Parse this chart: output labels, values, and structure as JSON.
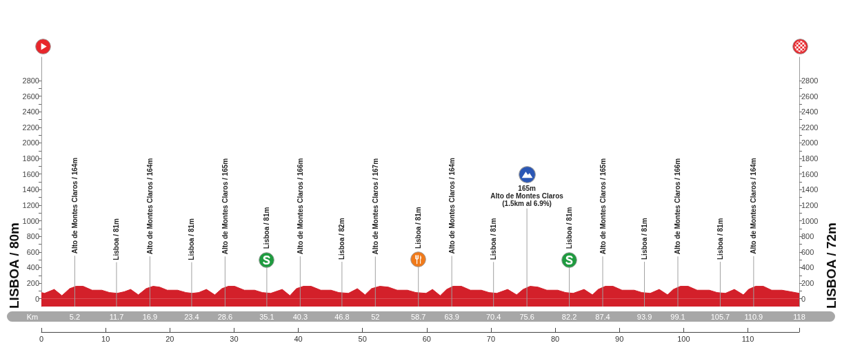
{
  "chart_data": {
    "type": "area",
    "x2label": "Km",
    "ylabel": "LISBOA / 80m",
    "y2label": "LISBOA / 72m",
    "color": "#d3202a",
    "x": [
      0,
      0.5,
      2,
      3.2,
      4.4,
      5.4,
      6.5,
      7.9,
      9.4,
      10.6,
      11.8,
      12.9,
      13.9,
      15.1,
      16.3,
      17.4,
      18.4,
      19.6,
      21.2,
      22.5,
      23.5,
      24.5,
      25.7,
      27,
      28.1,
      29.1,
      30.1,
      31.6,
      33.2,
      34.4,
      35.7,
      37.5,
      38.7,
      39.7,
      40.8,
      42,
      43.5,
      45.1,
      46.3,
      47.8,
      49.2,
      50.4,
      51.4,
      52.7,
      54,
      55.4,
      57,
      58.3,
      59.9,
      60.9,
      62.1,
      63.1,
      64.1,
      65.4,
      66.8,
      68.5,
      69.7,
      70.9,
      72.6,
      74,
      75,
      76.1,
      77.3,
      78.7,
      80.4,
      81.6,
      82.8,
      84.5,
      85.8,
      86.7,
      87.8,
      89,
      90.4,
      92.3,
      93.5,
      94.8,
      96.2,
      97.5,
      98.4,
      99.5,
      100.7,
      102.1,
      104,
      105.2,
      106.5,
      107.9,
      109.3,
      110.1,
      111.2,
      112.4,
      113.7,
      115.3,
      116.7,
      118
    ],
    "values": [
      80,
      70,
      120,
      40,
      130,
      160,
      160,
      110,
      110,
      80,
      70,
      90,
      120,
      50,
      130,
      160,
      150,
      110,
      110,
      80,
      70,
      80,
      120,
      50,
      130,
      160,
      160,
      110,
      110,
      80,
      70,
      120,
      40,
      130,
      160,
      160,
      110,
      110,
      80,
      70,
      130,
      50,
      130,
      160,
      150,
      110,
      110,
      80,
      70,
      120,
      40,
      120,
      160,
      160,
      110,
      110,
      80,
      70,
      120,
      50,
      120,
      160,
      150,
      110,
      110,
      80,
      70,
      120,
      50,
      120,
      160,
      160,
      110,
      110,
      80,
      70,
      120,
      50,
      120,
      160,
      160,
      110,
      110,
      80,
      70,
      120,
      50,
      120,
      160,
      160,
      110,
      110,
      90,
      70
    ],
    "xlim": [
      0,
      118
    ],
    "xticks": [
      0,
      10,
      20,
      30,
      40,
      50,
      60,
      70,
      80,
      90,
      100,
      110,
      {
        "value": 118,
        "label": null
      }
    ],
    "x2lim": [
      0,
      118
    ],
    "x2ticks": [
      5.2,
      11.7,
      16.9,
      23.4,
      28.6,
      35.1,
      40.3,
      46.8,
      52,
      58.7,
      63.9,
      70.4,
      75.6,
      82.2,
      87.4,
      93.9,
      99.1,
      105.7,
      110.9,
      118
    ],
    "ylim": [
      -100,
      3100
    ],
    "yticks": [
      0,
      {
        "value": 100,
        "label": null
      },
      200,
      {
        "value": 300,
        "label": null
      },
      400,
      {
        "value": 500,
        "label": null
      },
      600,
      {
        "value": 700,
        "label": null
      },
      800,
      {
        "value": 900,
        "label": null
      },
      1000,
      {
        "value": 1100,
        "label": null
      },
      1200,
      {
        "value": 1300,
        "label": null
      },
      1400,
      {
        "value": 1500,
        "label": null
      },
      1600,
      {
        "value": 1700,
        "label": null
      },
      1800,
      {
        "value": 1900,
        "label": null
      },
      2000,
      {
        "value": 2100,
        "label": null
      },
      2200,
      {
        "value": 2300,
        "label": null
      },
      2400,
      {
        "value": 2500,
        "label": null
      },
      2600,
      {
        "value": 2700,
        "label": null
      },
      2800
    ],
    "y2lim": [
      -100,
      3100
    ],
    "y2ticks": [
      0,
      {
        "value": 100,
        "label": null
      },
      200,
      {
        "value": 300,
        "label": null
      },
      400,
      {
        "value": 500,
        "label": null
      },
      600,
      {
        "value": 700,
        "label": null
      },
      800,
      {
        "value": 900,
        "label": null
      },
      1000,
      {
        "value": 1100,
        "label": null
      },
      1200,
      {
        "value": 1300,
        "label": null
      },
      1400,
      {
        "value": 1500,
        "label": null
      },
      1600,
      {
        "value": 1700,
        "label": null
      },
      1800,
      {
        "value": 1900,
        "label": null
      },
      2000,
      {
        "value": 2100,
        "label": null
      },
      2200,
      {
        "value": 2300,
        "label": null
      },
      2400,
      {
        "value": 2500,
        "label": null
      },
      2600,
      {
        "value": 2700,
        "label": null
      },
      2800
    ],
    "bands": [
      {
        "axis": "y",
        "from": -100,
        "to": 0,
        "color": "#d3202a"
      }
    ],
    "ref_lines": [
      {
        "axis": "x",
        "value": 5.2,
        "label": "Alto de Montes Claros / 164m",
        "color": "#a0a0a0"
      },
      {
        "axis": "x",
        "value": 11.7,
        "label": "Lisboa / 81m",
        "color": "#a0a0a0"
      },
      {
        "axis": "x",
        "value": 16.9,
        "label": "Alto de Montes Claros / 164m",
        "color": "#a0a0a0"
      },
      {
        "axis": "x",
        "value": 23.4,
        "label": "Lisboa / 81m",
        "color": "#a0a0a0"
      },
      {
        "axis": "x",
        "value": 28.6,
        "label": "Alto de Montes Claros / 165m",
        "color": "#a0a0a0"
      },
      {
        "axis": "x",
        "value": 35.1,
        "label": "Lisboa / 81m",
        "color": "#a0a0a0"
      },
      {
        "axis": "x",
        "value": 40.3,
        "label": "Alto de Montes Claros / 166m",
        "color": "#a0a0a0"
      },
      {
        "axis": "x",
        "value": 46.8,
        "label": "Lisboa / 82m",
        "color": "#a0a0a0"
      },
      {
        "axis": "x",
        "value": 52,
        "label": "Alto de Montes Claros / 167m",
        "color": "#a0a0a0"
      },
      {
        "axis": "x",
        "value": 58.7,
        "label": "Lisboa / 81m",
        "color": "#a0a0a0"
      },
      {
        "axis": "x",
        "value": 63.9,
        "label": "Alto de Montes Claros / 164m",
        "color": "#a0a0a0"
      },
      {
        "axis": "x",
        "value": 70.4,
        "label": "Lisboa / 81m",
        "color": "#a0a0a0"
      },
      {
        "axis": "x",
        "value": 75.6,
        "label": "165m\nAlto de Montes Claros\n(1.5km al 6.9%)",
        "color": "#a0a0a0"
      },
      {
        "axis": "x",
        "value": 82.2,
        "label": "Lisboa / 81m",
        "color": "#a0a0a0"
      },
      {
        "axis": "x",
        "value": 87.4,
        "label": "Alto de Montes Claros / 165m",
        "color": "#a0a0a0"
      },
      {
        "axis": "x",
        "value": 93.9,
        "label": "Lisboa / 81m",
        "color": "#a0a0a0"
      },
      {
        "axis": "x",
        "value": 99.1,
        "label": "Alto de Montes Claros / 166m",
        "color": "#a0a0a0"
      },
      {
        "axis": "x",
        "value": 105.7,
        "label": "Lisboa / 81m",
        "color": "#a0a0a0"
      },
      {
        "axis": "x",
        "value": 110.9,
        "label": "Alto de Montes Claros / 164m",
        "color": "#a0a0a0"
      }
    ]
  }
}
